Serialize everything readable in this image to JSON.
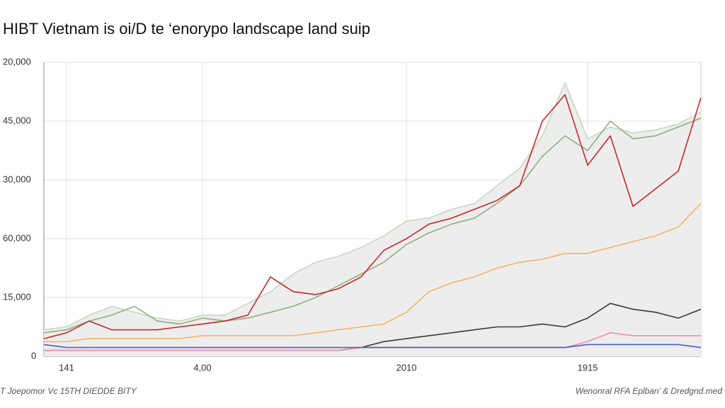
{
  "chart_data": {
    "type": "line",
    "title": "HIBT Vietnam is oi/D te ‘enorypo landscape land suip",
    "footer_left": "T Joepomor Vc 15TH DIEDDE BITY",
    "footer_right": "Wenonral RFA Eplban’ & Dredgnd.med",
    "y_labels": [
      "0",
      "15,000",
      "60,000",
      "30,000",
      "45,000",
      "20,000"
    ],
    "ylim": [
      0,
      100
    ],
    "yticks": [
      0,
      20,
      40,
      60,
      80,
      100
    ],
    "grid": true,
    "categories": [
      null,
      "141",
      null,
      null,
      null,
      null,
      null,
      "4,00",
      null,
      null,
      null,
      null,
      null,
      null,
      null,
      null,
      "2010",
      null,
      null,
      null,
      null,
      null,
      null,
      null,
      "1915",
      null,
      null,
      null,
      null,
      null
    ],
    "series": [
      {
        "name": "Area",
        "color": "#c8d8c0",
        "fill": "#ededed",
        "values": [
          9,
          10,
          14,
          17,
          15,
          13,
          12,
          14,
          14,
          18,
          22,
          28,
          32,
          34,
          37,
          41,
          46,
          47,
          50,
          52,
          58,
          64,
          75,
          93,
          74,
          78,
          76,
          77,
          79,
          83
        ]
      },
      {
        "name": "Green",
        "color": "#8fb07d",
        "values": [
          8,
          9,
          12,
          14,
          17,
          12,
          11,
          13,
          12,
          13,
          15,
          17,
          20,
          24,
          28,
          32,
          38,
          42,
          45,
          47,
          52,
          58,
          68,
          75,
          70,
          80,
          74,
          75,
          78,
          81
        ]
      },
      {
        "name": "Red",
        "color": "#c8282a",
        "values": [
          6,
          8,
          12,
          9,
          9,
          9,
          10,
          11,
          12,
          14,
          27,
          22,
          21,
          23,
          27,
          36,
          40,
          45,
          47,
          50,
          53,
          58,
          80,
          89,
          65,
          75,
          51,
          57,
          63,
          88
        ]
      },
      {
        "name": "Orange",
        "color": "#f5b461",
        "values": [
          5,
          5,
          6,
          6,
          6,
          6,
          6,
          7,
          7,
          7,
          7,
          7,
          8,
          9,
          10,
          11,
          15,
          22,
          25,
          27,
          30,
          32,
          33,
          35,
          35,
          37,
          39,
          41,
          44,
          52
        ]
      },
      {
        "name": "Black",
        "color": "#3a3a3a",
        "values": [
          2,
          2,
          2,
          2,
          2,
          2,
          2,
          2,
          2,
          2,
          2,
          2,
          2,
          2,
          3,
          5,
          6,
          7,
          8,
          9,
          10,
          10,
          11,
          10,
          13,
          18,
          16,
          15,
          13,
          16
        ]
      },
      {
        "name": "Pink",
        "color": "#f08fb0",
        "values": [
          2,
          2,
          2,
          2,
          2,
          2,
          2,
          2,
          2,
          2,
          2,
          2,
          2,
          2,
          3,
          3,
          3,
          3,
          3,
          3,
          3,
          3,
          3,
          3,
          5,
          8,
          7,
          7,
          7,
          7
        ]
      },
      {
        "name": "Blue",
        "color": "#4a5fc8",
        "values": [
          4,
          3,
          3,
          3,
          3,
          3,
          3,
          3,
          3,
          3,
          3,
          3,
          3,
          3,
          3,
          3,
          3,
          3,
          3,
          3,
          3,
          3,
          3,
          3,
          4,
          4,
          4,
          4,
          4,
          3
        ]
      }
    ]
  }
}
